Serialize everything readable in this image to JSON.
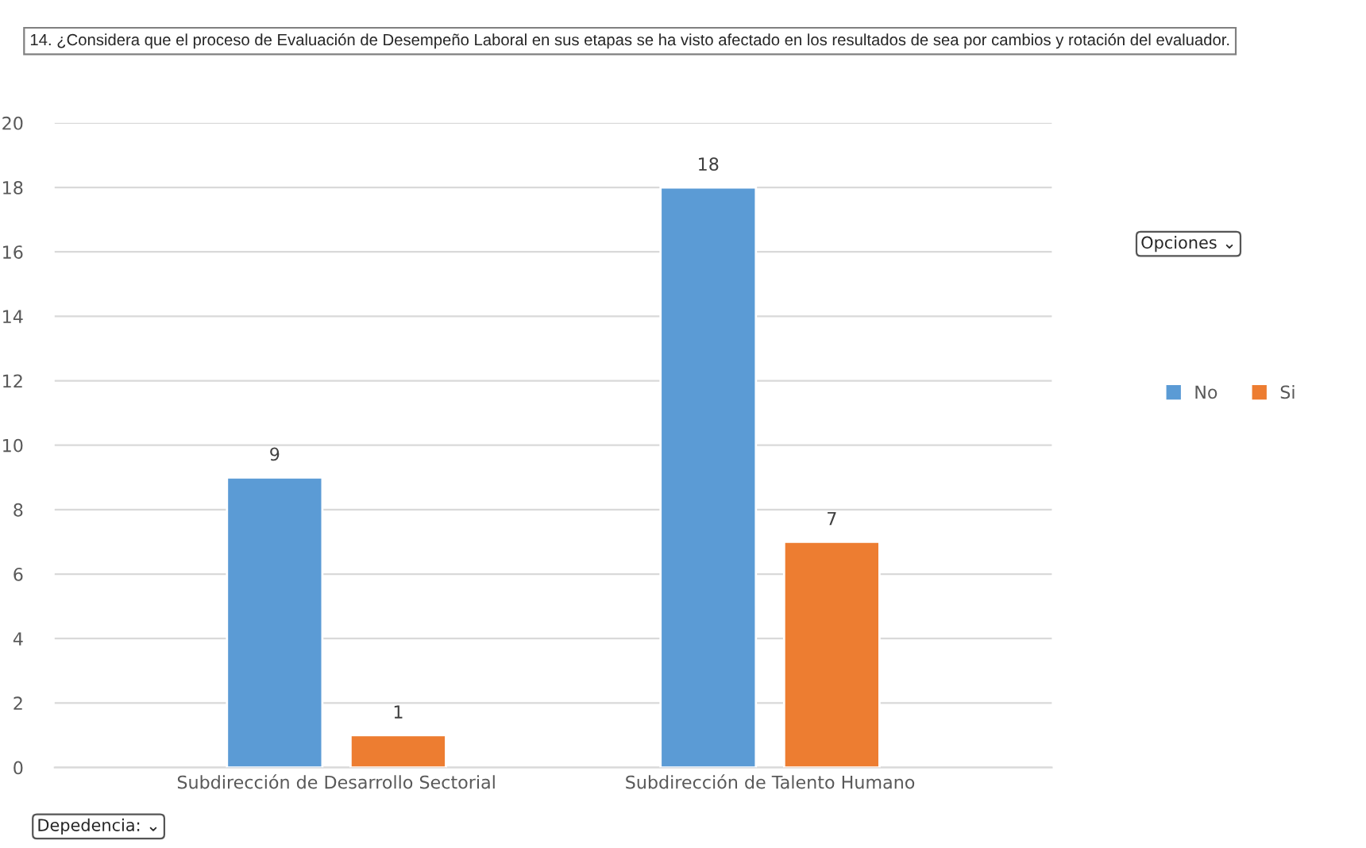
{
  "chart_data": {
    "type": "bar",
    "title": "14. ¿Considera que el proceso de Evaluación de Desempeño Laboral en sus etapas se ha visto afectado en los resultados de sea por cambios y rotación del evaluador.",
    "categories": [
      "Subdirección de Desarrollo Sectorial",
      "Subdirección de Talento Humano"
    ],
    "series": [
      {
        "name": "No",
        "color": "#5b9bd5",
        "values": [
          9,
          18
        ]
      },
      {
        "name": "Si",
        "color": "#ed7d31",
        "values": [
          1,
          7
        ]
      }
    ],
    "ylim": [
      0,
      20
    ],
    "yticks": [
      0,
      2,
      4,
      6,
      8,
      10,
      12,
      14,
      16,
      18,
      20
    ],
    "grid": "y",
    "legend": "right",
    "data_labels": true,
    "annotations": [
      "Opciones ⌄",
      "Depedencia: ⌄"
    ]
  }
}
